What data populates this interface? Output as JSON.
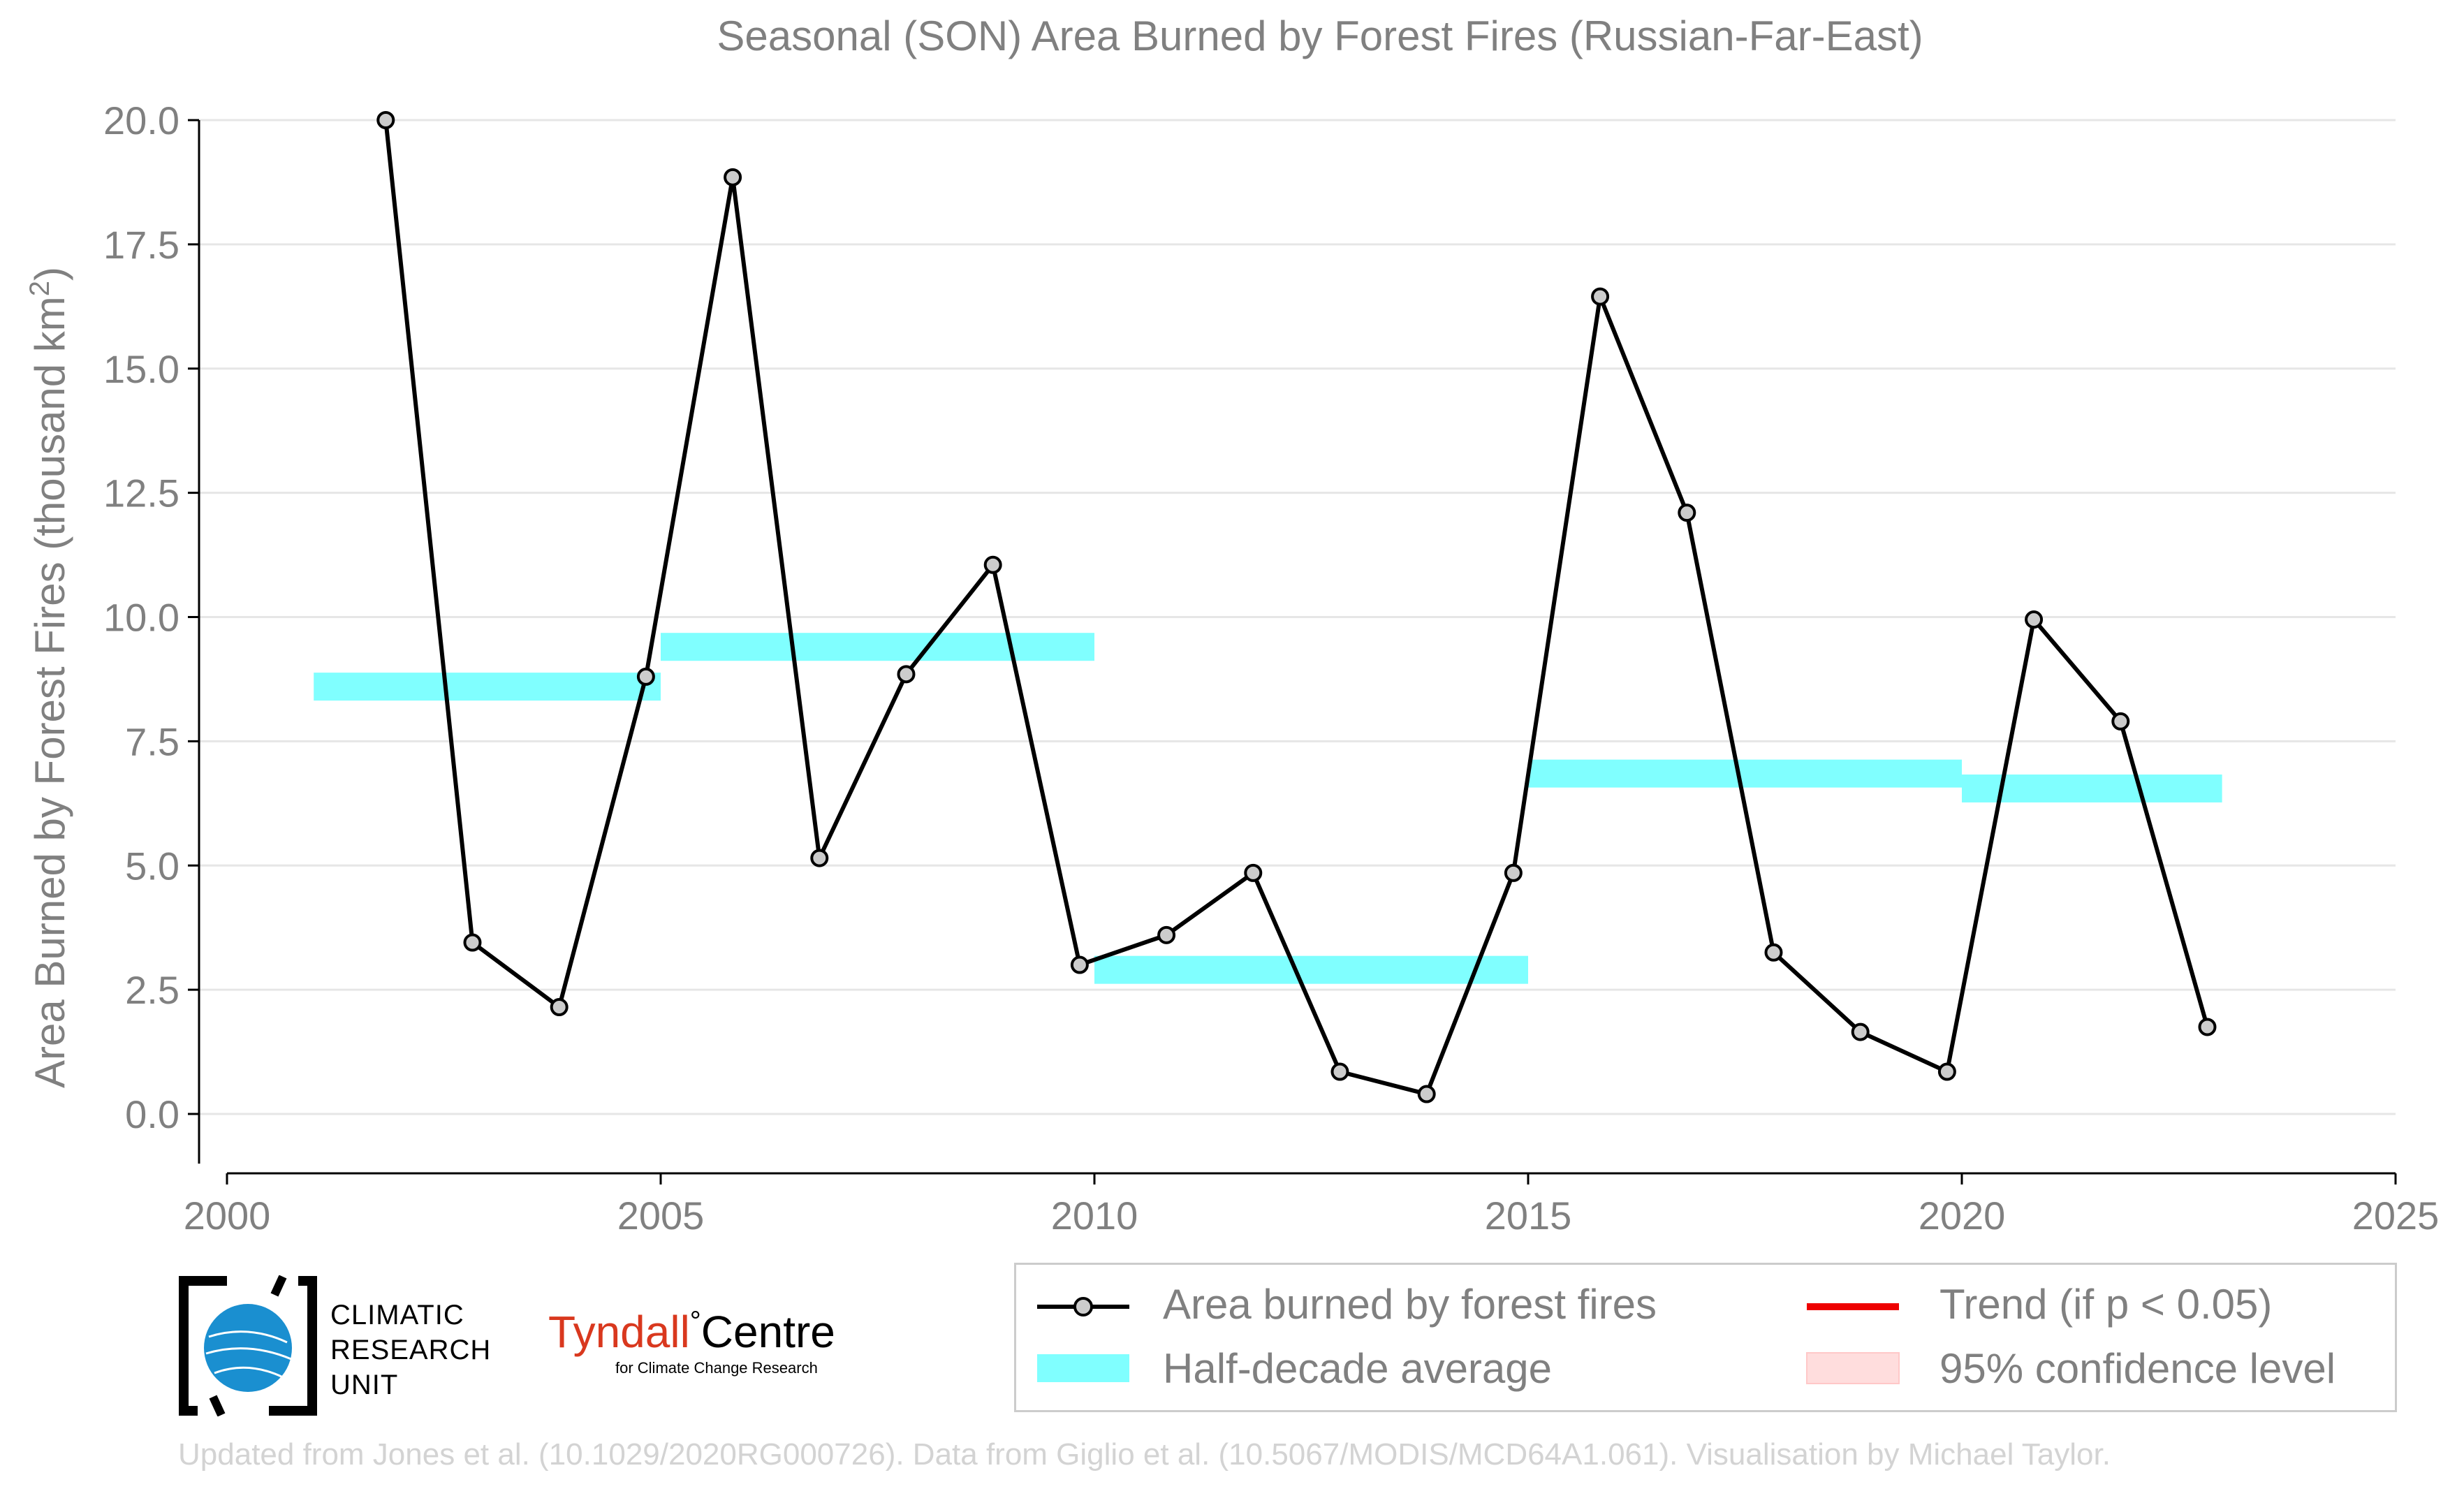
{
  "chart_data": {
    "type": "line",
    "title": "Seasonal (SON) Area Burned by Forest Fires (Russian-Far-East)",
    "xlabel": "",
    "ylabel": "Area Burned by Forest Fires (thousand km",
    "ylabel_sup": "2",
    "ylabel_tail": ")",
    "xlim": [
      2000,
      2025
    ],
    "ylim": [
      -1.0,
      20.5
    ],
    "xticks": [
      "2000",
      "2005",
      "2010",
      "2015",
      "2020",
      "2025"
    ],
    "yticks": [
      "0.0",
      "2.5",
      "5.0",
      "7.5",
      "10.0",
      "12.5",
      "15.0",
      "17.5",
      "20.0"
    ],
    "grid": true,
    "series": [
      {
        "name": "Area burned by forest fires",
        "color": "#000000",
        "x": [
          2001.83,
          2002.83,
          2003.83,
          2004.83,
          2005.83,
          2006.83,
          2007.83,
          2008.83,
          2009.83,
          2010.83,
          2011.83,
          2012.83,
          2013.83,
          2014.83,
          2015.83,
          2016.83,
          2017.83,
          2018.83,
          2019.83,
          2020.83,
          2021.83,
          2022.83
        ],
        "values": [
          20.0,
          3.45,
          2.15,
          8.8,
          18.85,
          5.15,
          8.85,
          11.05,
          3.0,
          3.6,
          4.85,
          0.85,
          0.4,
          4.85,
          16.45,
          12.1,
          3.25,
          1.65,
          0.85,
          9.95,
          7.9,
          1.75
        ]
      }
    ],
    "half_decade_average": {
      "name": "Half-decade average",
      "color": "#80ffff",
      "segments": [
        {
          "x0": 2001,
          "x1": 2005,
          "value": 8.6
        },
        {
          "x0": 2005,
          "x1": 2010,
          "value": 9.4
        },
        {
          "x0": 2010,
          "x1": 2015,
          "value": 2.9
        },
        {
          "x0": 2015,
          "x1": 2020,
          "value": 6.85
        },
        {
          "x0": 2020,
          "x1": 2023,
          "value": 6.55
        }
      ]
    },
    "legend": {
      "placement": "bottom-right",
      "items": [
        {
          "label": "Area burned by forest fires",
          "kind": "line-marker",
          "color": "#000000"
        },
        {
          "label": "Trend (if p < 0.05)",
          "kind": "line",
          "color": "#ee0000"
        },
        {
          "label": "Half-decade average",
          "kind": "band",
          "color": "#80ffff"
        },
        {
          "label": "95% confidence level",
          "kind": "patch",
          "color": "#ffdddd"
        }
      ]
    }
  },
  "logos": {
    "cru_lines": [
      "CLIMATIC",
      "RESEARCH",
      "UNIT"
    ],
    "tyndall_name": "Tyndall",
    "tyndall_degree": "°",
    "tyndall_centre": "Centre",
    "tyndall_sub": "for Climate Change Research"
  },
  "credit": "Updated from Jones et al. (10.1029/2020RG000726). Data from Giglio et al. (10.5067/MODIS/MCD64A1.061). Visualisation by Michael Taylor."
}
